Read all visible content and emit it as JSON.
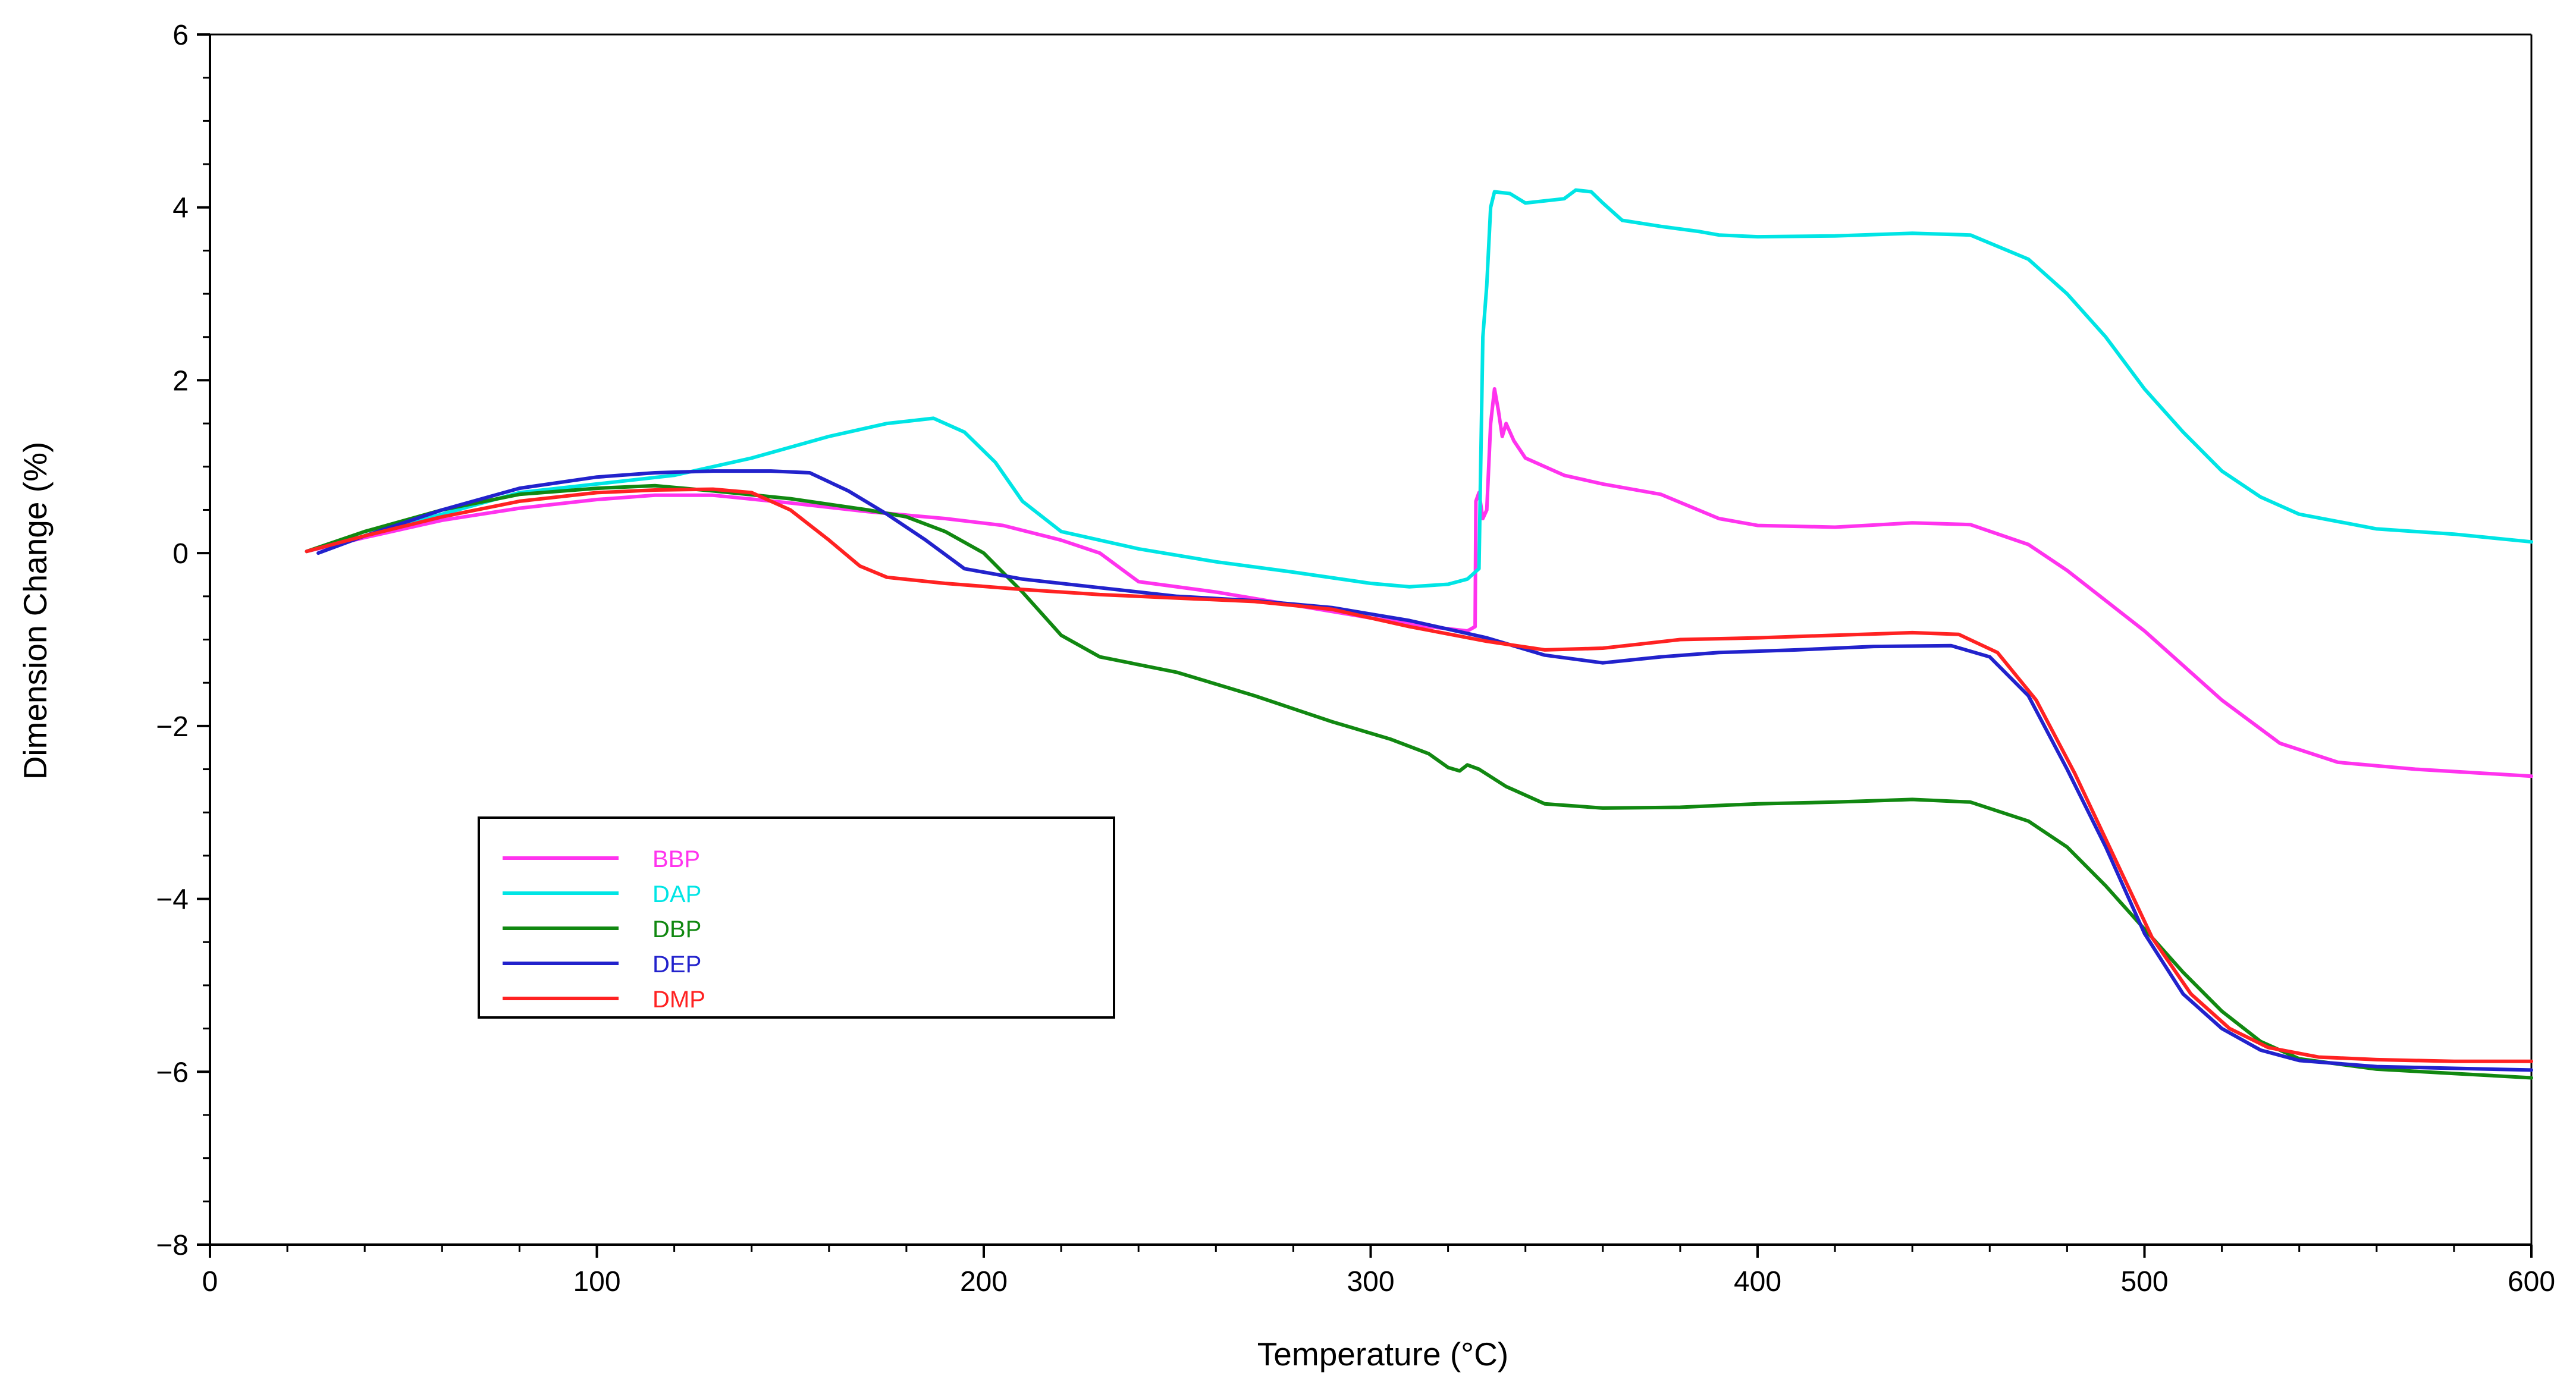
{
  "chart_data": {
    "type": "line",
    "title": "",
    "xlabel": "Temperature (°C)",
    "ylabel": "Dimension Change (%)",
    "xlim": [
      0,
      600
    ],
    "ylim": [
      -8,
      6
    ],
    "grid": false,
    "legend_position": "lower-left",
    "x_ticks": [
      0,
      100,
      200,
      300,
      400,
      500,
      600
    ],
    "x_tick_labels": [
      "0",
      "100",
      "200",
      "300",
      "400",
      "500",
      "600"
    ],
    "y_ticks": [
      -8,
      -6,
      -4,
      -2,
      0,
      2,
      4,
      6
    ],
    "y_tick_labels": [
      "−8",
      "−6",
      "−4",
      "−2",
      "0",
      "2",
      "4",
      "6"
    ],
    "series": [
      {
        "name": "BBP",
        "color": "#ff33ee",
        "points": [
          [
            25,
            0.02
          ],
          [
            40,
            0.18
          ],
          [
            60,
            0.38
          ],
          [
            80,
            0.52
          ],
          [
            100,
            0.62
          ],
          [
            115,
            0.67
          ],
          [
            130,
            0.67
          ],
          [
            150,
            0.58
          ],
          [
            170,
            0.48
          ],
          [
            190,
            0.4
          ],
          [
            205,
            0.32
          ],
          [
            220,
            0.15
          ],
          [
            230,
            0.0
          ],
          [
            240,
            -0.33
          ],
          [
            260,
            -0.45
          ],
          [
            280,
            -0.6
          ],
          [
            300,
            -0.75
          ],
          [
            315,
            -0.85
          ],
          [
            325,
            -0.9
          ],
          [
            327,
            -0.85
          ],
          [
            327.2,
            0.6
          ],
          [
            328,
            0.7
          ],
          [
            329,
            0.4
          ],
          [
            330,
            0.5
          ],
          [
            331,
            1.5
          ],
          [
            332,
            1.9
          ],
          [
            333,
            1.65
          ],
          [
            334,
            1.35
          ],
          [
            335,
            1.5
          ],
          [
            337,
            1.3
          ],
          [
            340,
            1.1
          ],
          [
            350,
            0.9
          ],
          [
            360,
            0.8
          ],
          [
            375,
            0.68
          ],
          [
            390,
            0.4
          ],
          [
            400,
            0.32
          ],
          [
            420,
            0.3
          ],
          [
            440,
            0.35
          ],
          [
            455,
            0.33
          ],
          [
            470,
            0.1
          ],
          [
            480,
            -0.2
          ],
          [
            500,
            -0.9
          ],
          [
            520,
            -1.7
          ],
          [
            535,
            -2.2
          ],
          [
            550,
            -2.42
          ],
          [
            570,
            -2.5
          ],
          [
            600,
            -2.58
          ]
        ]
      },
      {
        "name": "DAP",
        "color": "#00e5e5",
        "points": [
          [
            25,
            0.02
          ],
          [
            40,
            0.2
          ],
          [
            60,
            0.45
          ],
          [
            80,
            0.7
          ],
          [
            100,
            0.8
          ],
          [
            120,
            0.9
          ],
          [
            140,
            1.1
          ],
          [
            160,
            1.35
          ],
          [
            175,
            1.5
          ],
          [
            187,
            1.56
          ],
          [
            195,
            1.4
          ],
          [
            203,
            1.05
          ],
          [
            210,
            0.6
          ],
          [
            220,
            0.25
          ],
          [
            240,
            0.05
          ],
          [
            260,
            -0.1
          ],
          [
            280,
            -0.22
          ],
          [
            300,
            -0.35
          ],
          [
            310,
            -0.39
          ],
          [
            320,
            -0.36
          ],
          [
            325,
            -0.3
          ],
          [
            328,
            -0.18
          ],
          [
            329,
            2.5
          ],
          [
            330,
            3.1
          ],
          [
            331,
            4.0
          ],
          [
            332,
            4.18
          ],
          [
            336,
            4.16
          ],
          [
            340,
            4.05
          ],
          [
            350,
            4.1
          ],
          [
            353,
            4.2
          ],
          [
            357,
            4.18
          ],
          [
            360,
            4.05
          ],
          [
            365,
            3.85
          ],
          [
            375,
            3.78
          ],
          [
            385,
            3.72
          ],
          [
            390,
            3.68
          ],
          [
            400,
            3.66
          ],
          [
            420,
            3.67
          ],
          [
            440,
            3.7
          ],
          [
            455,
            3.68
          ],
          [
            470,
            3.4
          ],
          [
            480,
            3.0
          ],
          [
            490,
            2.5
          ],
          [
            500,
            1.9
          ],
          [
            510,
            1.4
          ],
          [
            520,
            0.95
          ],
          [
            530,
            0.65
          ],
          [
            540,
            0.45
          ],
          [
            560,
            0.28
          ],
          [
            580,
            0.22
          ],
          [
            600,
            0.13
          ]
        ]
      },
      {
        "name": "DBP",
        "color": "#118811",
        "points": [
          [
            25,
            0.02
          ],
          [
            40,
            0.25
          ],
          [
            60,
            0.5
          ],
          [
            80,
            0.68
          ],
          [
            100,
            0.75
          ],
          [
            115,
            0.78
          ],
          [
            130,
            0.72
          ],
          [
            150,
            0.63
          ],
          [
            170,
            0.5
          ],
          [
            180,
            0.42
          ],
          [
            190,
            0.25
          ],
          [
            200,
            0.0
          ],
          [
            210,
            -0.45
          ],
          [
            220,
            -0.95
          ],
          [
            230,
            -1.2
          ],
          [
            250,
            -1.38
          ],
          [
            270,
            -1.65
          ],
          [
            290,
            -1.95
          ],
          [
            305,
            -2.15
          ],
          [
            315,
            -2.32
          ],
          [
            320,
            -2.48
          ],
          [
            323,
            -2.52
          ],
          [
            325,
            -2.45
          ],
          [
            328,
            -2.5
          ],
          [
            335,
            -2.7
          ],
          [
            345,
            -2.9
          ],
          [
            360,
            -2.95
          ],
          [
            380,
            -2.94
          ],
          [
            400,
            -2.9
          ],
          [
            420,
            -2.88
          ],
          [
            440,
            -2.85
          ],
          [
            455,
            -2.88
          ],
          [
            470,
            -3.1
          ],
          [
            480,
            -3.4
          ],
          [
            490,
            -3.85
          ],
          [
            500,
            -4.35
          ],
          [
            510,
            -4.85
          ],
          [
            520,
            -5.3
          ],
          [
            530,
            -5.65
          ],
          [
            540,
            -5.85
          ],
          [
            560,
            -5.97
          ],
          [
            580,
            -6.02
          ],
          [
            600,
            -6.07
          ]
        ]
      },
      {
        "name": "DEP",
        "color": "#2222cc",
        "points": [
          [
            28,
            0.0
          ],
          [
            40,
            0.2
          ],
          [
            60,
            0.5
          ],
          [
            80,
            0.75
          ],
          [
            100,
            0.88
          ],
          [
            115,
            0.93
          ],
          [
            130,
            0.95
          ],
          [
            145,
            0.95
          ],
          [
            155,
            0.93
          ],
          [
            165,
            0.72
          ],
          [
            175,
            0.45
          ],
          [
            185,
            0.15
          ],
          [
            195,
            -0.18
          ],
          [
            210,
            -0.3
          ],
          [
            230,
            -0.4
          ],
          [
            250,
            -0.5
          ],
          [
            270,
            -0.55
          ],
          [
            290,
            -0.63
          ],
          [
            310,
            -0.78
          ],
          [
            330,
            -0.98
          ],
          [
            345,
            -1.18
          ],
          [
            360,
            -1.27
          ],
          [
            375,
            -1.2
          ],
          [
            390,
            -1.15
          ],
          [
            410,
            -1.12
          ],
          [
            430,
            -1.08
          ],
          [
            450,
            -1.07
          ],
          [
            460,
            -1.2
          ],
          [
            470,
            -1.65
          ],
          [
            480,
            -2.5
          ],
          [
            490,
            -3.4
          ],
          [
            500,
            -4.4
          ],
          [
            510,
            -5.1
          ],
          [
            520,
            -5.5
          ],
          [
            530,
            -5.75
          ],
          [
            540,
            -5.87
          ],
          [
            560,
            -5.94
          ],
          [
            580,
            -5.96
          ],
          [
            600,
            -5.98
          ]
        ]
      },
      {
        "name": "DMP",
        "color": "#ff2222",
        "points": [
          [
            25,
            0.02
          ],
          [
            40,
            0.2
          ],
          [
            60,
            0.42
          ],
          [
            80,
            0.6
          ],
          [
            100,
            0.7
          ],
          [
            115,
            0.73
          ],
          [
            130,
            0.74
          ],
          [
            140,
            0.7
          ],
          [
            150,
            0.5
          ],
          [
            160,
            0.15
          ],
          [
            168,
            -0.15
          ],
          [
            175,
            -0.28
          ],
          [
            190,
            -0.35
          ],
          [
            210,
            -0.42
          ],
          [
            230,
            -0.48
          ],
          [
            250,
            -0.52
          ],
          [
            270,
            -0.56
          ],
          [
            290,
            -0.65
          ],
          [
            310,
            -0.85
          ],
          [
            330,
            -1.02
          ],
          [
            345,
            -1.12
          ],
          [
            360,
            -1.1
          ],
          [
            370,
            -1.05
          ],
          [
            380,
            -1.0
          ],
          [
            400,
            -0.98
          ],
          [
            420,
            -0.95
          ],
          [
            440,
            -0.92
          ],
          [
            452,
            -0.94
          ],
          [
            462,
            -1.15
          ],
          [
            472,
            -1.7
          ],
          [
            482,
            -2.55
          ],
          [
            492,
            -3.5
          ],
          [
            502,
            -4.45
          ],
          [
            512,
            -5.1
          ],
          [
            522,
            -5.5
          ],
          [
            532,
            -5.72
          ],
          [
            545,
            -5.83
          ],
          [
            560,
            -5.86
          ],
          [
            580,
            -5.88
          ],
          [
            600,
            -5.88
          ]
        ]
      }
    ],
    "legend_entries": [
      "BBP",
      "DAP",
      "DBP",
      "DEP",
      "DMP"
    ]
  }
}
